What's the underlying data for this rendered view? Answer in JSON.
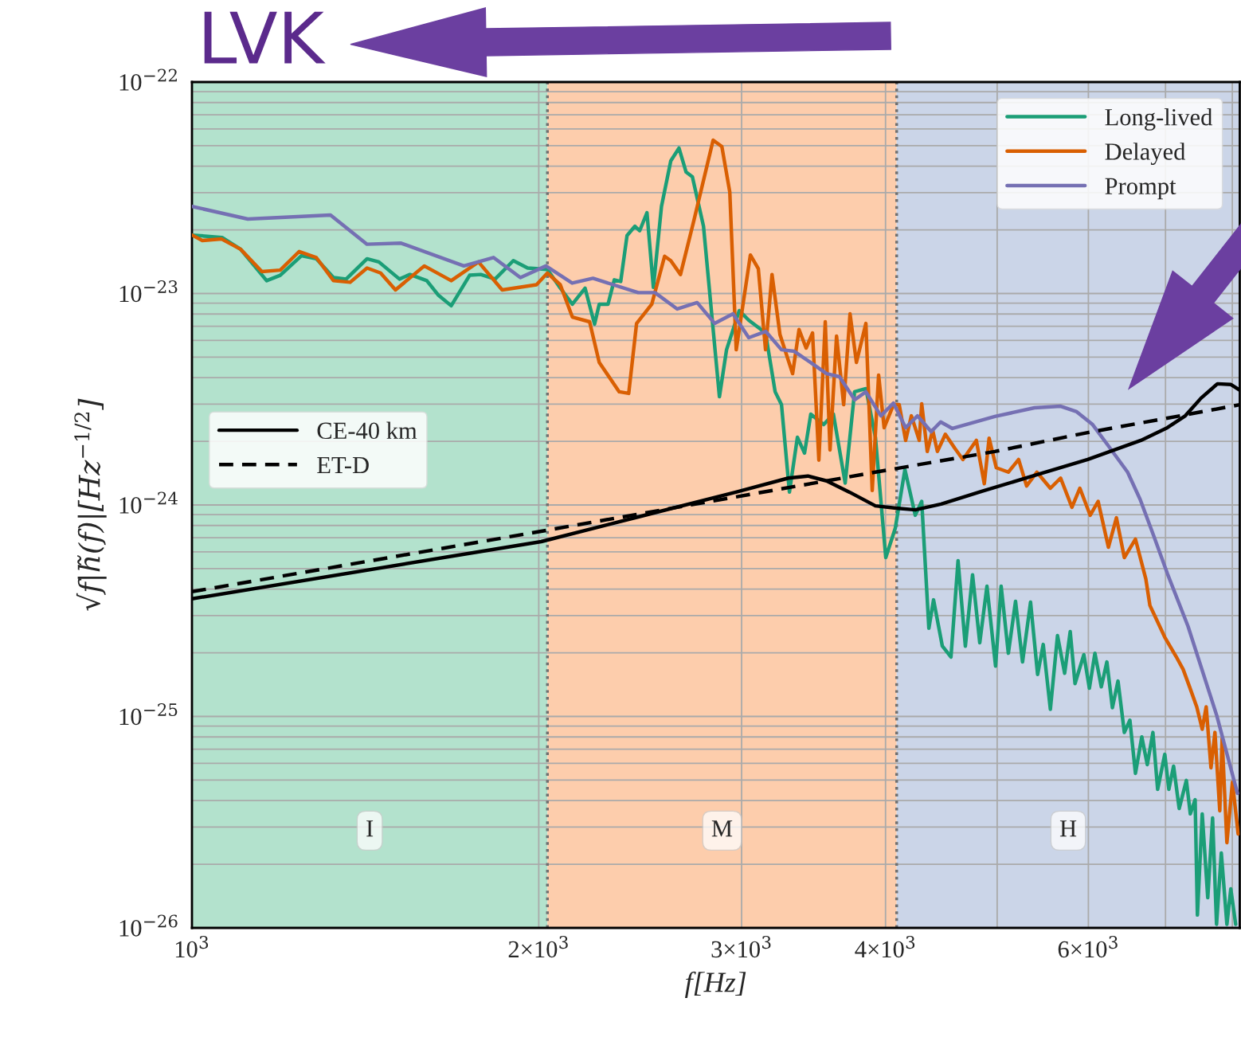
{
  "chart_data": {
    "type": "line",
    "xlabel": "f[Hz]",
    "ylabel": "√f|h̃(f)|[Hz$^{−1/2}$]",
    "log": "xy",
    "grid": true,
    "legend": "top right",
    "xlim": [
      1000,
      8120
    ],
    "ylim": [
      1e-26,
      1e-22
    ],
    "xticks": [
      {
        "value": 1000,
        "label": "10$^{3}$"
      },
      {
        "value": 2000,
        "label": "2×10$^{3}$"
      },
      {
        "value": 3000,
        "label": "3×10$^{3}$"
      },
      {
        "value": 4000,
        "label": "4×10$^{3}$"
      },
      {
        "value": 5000,
        "label": null
      },
      {
        "value": 6000,
        "label": "6×10$^{3}$"
      },
      {
        "value": 7000,
        "label": null
      },
      {
        "value": 8000,
        "label": null
      }
    ],
    "yticks": [
      {
        "value": 1e-26,
        "label": "10$^{−26}$"
      },
      {
        "value": 1e-25,
        "label": "10$^{−25}$"
      },
      {
        "value": 1e-24,
        "label": "10$^{−24}$"
      },
      {
        "value": 1e-23,
        "label": "10$^{−23}$"
      },
      {
        "value": 1e-22,
        "label": "10$^{−22}$"
      }
    ],
    "bands": [
      {
        "axis": "x",
        "from": 1000,
        "to": 2035,
        "label": "I",
        "color": "#b3e2cd"
      },
      {
        "axis": "x",
        "from": 2035,
        "to": 4090,
        "label": "M",
        "color": "#fdcdac"
      },
      {
        "axis": "x",
        "from": 4090,
        "to": 8120,
        "label": "H",
        "color": "#cbd5e8"
      }
    ],
    "ref_lines": [
      {
        "axis": "x",
        "value": 2035,
        "line_style": "dotted",
        "color": "#707070"
      },
      {
        "axis": "x",
        "value": 4090,
        "line_style": "dotted",
        "color": "#707070"
      }
    ],
    "annotations": [
      "LVK"
    ],
    "series": [
      {
        "name": "Long-lived",
        "color": "#1b9e77",
        "line_style": "solid",
        "x": [
          1000,
          1062,
          1102,
          1161,
          1193,
          1245,
          1282,
          1327,
          1361,
          1419,
          1453,
          1514,
          1546,
          1599,
          1637,
          1679,
          1742,
          1781,
          1833,
          1901,
          1956,
          2035,
          2088,
          2139,
          2194,
          2236,
          2257,
          2297,
          2326,
          2356,
          2386,
          2424,
          2447,
          2483,
          2515,
          2556,
          2604,
          2647,
          2685,
          2719,
          2780,
          2870,
          2911,
          2986,
          3043,
          3147,
          3208,
          3249,
          3301,
          3354,
          3402,
          3445,
          3535,
          3604,
          3690,
          3760,
          3846,
          3920,
          4002,
          4079,
          4158,
          4245,
          4300,
          4362,
          4403,
          4481,
          4559,
          4624,
          4692,
          4760,
          4829,
          4899,
          4984,
          5040,
          5113,
          5187,
          5260,
          5345,
          5421,
          5482,
          5561,
          5641,
          5722,
          5786,
          5842,
          5946,
          6012,
          6079,
          6157,
          6226,
          6295,
          6366,
          6447,
          6519,
          6592,
          6676,
          6750,
          6826,
          6891,
          6990,
          7047,
          7114,
          7194,
          7298,
          7356,
          7427,
          7461,
          7533,
          7617,
          7691,
          7752,
          7826,
          7914,
          7976,
          8054
        ],
        "values": [
          1.89e-23,
          1.84e-23,
          1.62e-23,
          1.15e-23,
          1.22e-23,
          1.51e-23,
          1.46e-23,
          1.19e-23,
          1.17e-23,
          1.46e-23,
          1.41e-23,
          1.17e-23,
          1.23e-23,
          1.15e-23,
          9.8e-24,
          8.75e-24,
          1.22e-23,
          1.23e-23,
          1.17e-23,
          1.43e-23,
          1.32e-23,
          1.3e-23,
          1.06e-23,
          8.9e-24,
          1.06e-23,
          7.16e-24,
          8.9e-24,
          8.9e-24,
          1.16e-23,
          1.14e-23,
          1.88e-23,
          2.08e-23,
          1.98e-23,
          2.41e-23,
          1.07e-23,
          2.58e-23,
          4.24e-23,
          4.87e-23,
          3.75e-23,
          3.56e-23,
          2.08e-23,
          3.25e-24,
          5.42e-24,
          8.3e-24,
          7.48e-24,
          6.51e-24,
          3.43e-24,
          2.98e-24,
          1.15e-24,
          2.09e-24,
          1.76e-24,
          2.69e-24,
          2.4e-24,
          2.69e-24,
          1.27e-24,
          3.43e-24,
          3.55e-24,
          2.09e-24,
          5.64e-25,
          7.78e-25,
          1.47e-24,
          8.94e-25,
          1.04e-24,
          2.61e-25,
          3.56e-25,
          2.15e-25,
          1.91e-25,
          5.45e-25,
          2.15e-25,
          4.67e-25,
          2.23e-25,
          4.13e-25,
          1.73e-25,
          4.13e-25,
          1.99e-25,
          3.5e-25,
          1.81e-25,
          3.47e-25,
          1.58e-25,
          2.19e-25,
          1.08e-25,
          2.41e-25,
          1.6e-25,
          2.52e-25,
          1.43e-25,
          1.96e-25,
          1.36e-25,
          1.99e-25,
          1.38e-25,
          1.81e-25,
          1.1e-25,
          1.47e-25,
          8.4e-26,
          9.6e-26,
          5.38e-26,
          8e-26,
          5.92e-26,
          8.4e-26,
          4.52e-26,
          6.62e-26,
          4.52e-26,
          5.82e-26,
          3.67e-26,
          4.98e-26,
          3.46e-26,
          4.04e-26,
          1.15e-26,
          3.46e-26,
          1.39e-26,
          3.31e-26,
          1.04e-26,
          2.26e-26,
          1.04e-26,
          1.53e-26,
          1.04e-26
        ]
      },
      {
        "name": "Delayed",
        "color": "#d95f02",
        "line_style": "solid",
        "x": [
          1000,
          1021,
          1061,
          1102,
          1150,
          1193,
          1239,
          1282,
          1327,
          1372,
          1419,
          1458,
          1502,
          1591,
          1679,
          1773,
          1859,
          1991,
          2035,
          2088,
          2139,
          2214,
          2257,
          2349,
          2394,
          2432,
          2507,
          2572,
          2604,
          2655,
          2728,
          2834,
          2884,
          2930,
          2968,
          3053,
          3102,
          3147,
          3188,
          3239,
          3322,
          3365,
          3413,
          3457,
          3501,
          3546,
          3580,
          3627,
          3679,
          3726,
          3774,
          3846,
          3895,
          3945,
          3989,
          4064,
          4111,
          4164,
          4212,
          4279,
          4300,
          4348,
          4395,
          4437,
          4508,
          4595,
          4669,
          4796,
          4873,
          4920,
          4991,
          5113,
          5219,
          5303,
          5413,
          5561,
          5676,
          5806,
          5899,
          6022,
          6118,
          6245,
          6346,
          6447,
          6592,
          6730,
          6785,
          6990,
          7150,
          7251,
          7345,
          7451,
          7533,
          7593,
          7666,
          7727,
          7802,
          7839,
          7914,
          8002,
          8094
        ],
        "values": [
          1.89e-23,
          1.78e-23,
          1.81e-23,
          1.62e-23,
          1.27e-23,
          1.29e-23,
          1.58e-23,
          1.48e-23,
          1.15e-23,
          1.13e-23,
          1.32e-23,
          1.25e-23,
          1.04e-23,
          1.35e-23,
          1.15e-23,
          1.41e-23,
          1.04e-23,
          1.1e-23,
          1.25e-23,
          1.1e-23,
          7.74e-24,
          7.35e-24,
          4.72e-24,
          3.43e-24,
          3.37e-24,
          7.22e-24,
          8.9e-24,
          1.5e-23,
          1.43e-23,
          1.23e-23,
          2.23e-23,
          5.31e-23,
          4.95e-23,
          3.02e-23,
          5.42e-24,
          1.52e-23,
          1.31e-23,
          5.42e-24,
          1.23e-23,
          6.4e-24,
          4.18e-24,
          6.75e-24,
          5.52e-24,
          6.51e-24,
          1.63e-24,
          7.35e-24,
          1.82e-24,
          6.29e-24,
          2.98e-24,
          8.02e-24,
          4.72e-24,
          7.22e-24,
          1.17e-24,
          4.11e-24,
          2.32e-24,
          2.98e-24,
          2.98e-24,
          2.02e-24,
          2.64e-24,
          2.02e-24,
          3.01e-24,
          1.79e-24,
          2.26e-24,
          1.79e-24,
          2.16e-24,
          1.85e-24,
          1.64e-24,
          2.02e-24,
          1.26e-24,
          2.07e-24,
          1.5e-24,
          1.43e-24,
          1.64e-24,
          1.23e-24,
          1.43e-24,
          1.2e-24,
          1.34e-24,
          9.75e-25,
          1.2e-24,
          8.94e-25,
          1.04e-24,
          6.31e-25,
          8.7e-25,
          5.64e-25,
          6.89e-25,
          4.47e-25,
          3.35e-25,
          2.37e-25,
          1.92e-25,
          1.67e-25,
          1.38e-25,
          1.11e-25,
          8.7e-26,
          1.11e-25,
          5.72e-26,
          8.4e-26,
          3.58e-26,
          7.87e-26,
          2.53e-26,
          4.89e-26,
          2.78e-26
        ]
      },
      {
        "name": "Prompt",
        "color": "#7570b3",
        "line_style": "solid",
        "x": [
          1000,
          1118,
          1319,
          1419,
          1519,
          1722,
          1827,
          1928,
          2029,
          2138,
          2229,
          2440,
          2523,
          2638,
          2745,
          2843,
          2949,
          3043,
          3148,
          3249,
          3333,
          3556,
          3648,
          3761,
          3846,
          3963,
          4064,
          4164,
          4264,
          4382,
          4466,
          4572,
          4977,
          5387,
          5677,
          5861,
          6051,
          6246,
          6489,
          6655,
          6838,
          7026,
          7322,
          7755,
          8083
        ],
        "values": [
          2.58e-23,
          2.25e-23,
          2.35e-23,
          1.71e-23,
          1.73e-23,
          1.35e-23,
          1.48e-23,
          1.19e-23,
          1.35e-23,
          1.12e-23,
          1.18e-23,
          1.01e-23,
          1.01e-23,
          8.45e-24,
          9.06e-24,
          7.22e-24,
          8.02e-24,
          6.18e-24,
          6.62e-24,
          5.42e-24,
          5.33e-24,
          4.18e-24,
          4.04e-24,
          3.14e-24,
          3.43e-24,
          2.64e-24,
          3.03e-24,
          2.32e-24,
          2.64e-24,
          2.22e-24,
          2.47e-24,
          2.3e-24,
          2.62e-24,
          2.88e-24,
          2.93e-24,
          2.76e-24,
          2.4e-24,
          1.9e-24,
          1.43e-24,
          1.06e-24,
          7.13e-25,
          4.74e-25,
          2.67e-25,
          1.01e-25,
          4.33e-26
        ]
      },
      {
        "name": "CE-40 km",
        "color": "#000000",
        "line_style": "solid",
        "x": [
          1000,
          2010,
          2440,
          2966,
          3294,
          3425,
          3555,
          3722,
          3920,
          4086,
          4245,
          4470,
          4848,
          5388,
          5992,
          6664,
          7026,
          7282,
          7515,
          7765,
          7979,
          8120
        ],
        "values": [
          3.6e-25,
          6.71e-25,
          8.78e-25,
          1.15e-24,
          1.34e-24,
          1.37e-24,
          1.3e-24,
          1.15e-24,
          9.9e-25,
          9.66e-25,
          9.48e-25,
          1.01e-24,
          1.16e-24,
          1.38e-24,
          1.64e-24,
          2.02e-24,
          2.32e-24,
          2.64e-24,
          3.2e-24,
          3.74e-24,
          3.71e-24,
          3.49e-24
        ]
      },
      {
        "name": "ET-D",
        "color": "#000000",
        "line_style": "dashed",
        "x": [
          1000,
          2010,
          3555,
          3920,
          4977,
          5992,
          7206,
          8120
        ],
        "values": [
          3.89e-25,
          7.51e-25,
          1.3e-24,
          1.43e-24,
          1.79e-24,
          2.2e-24,
          2.64e-24,
          2.98e-24
        ]
      }
    ]
  }
}
